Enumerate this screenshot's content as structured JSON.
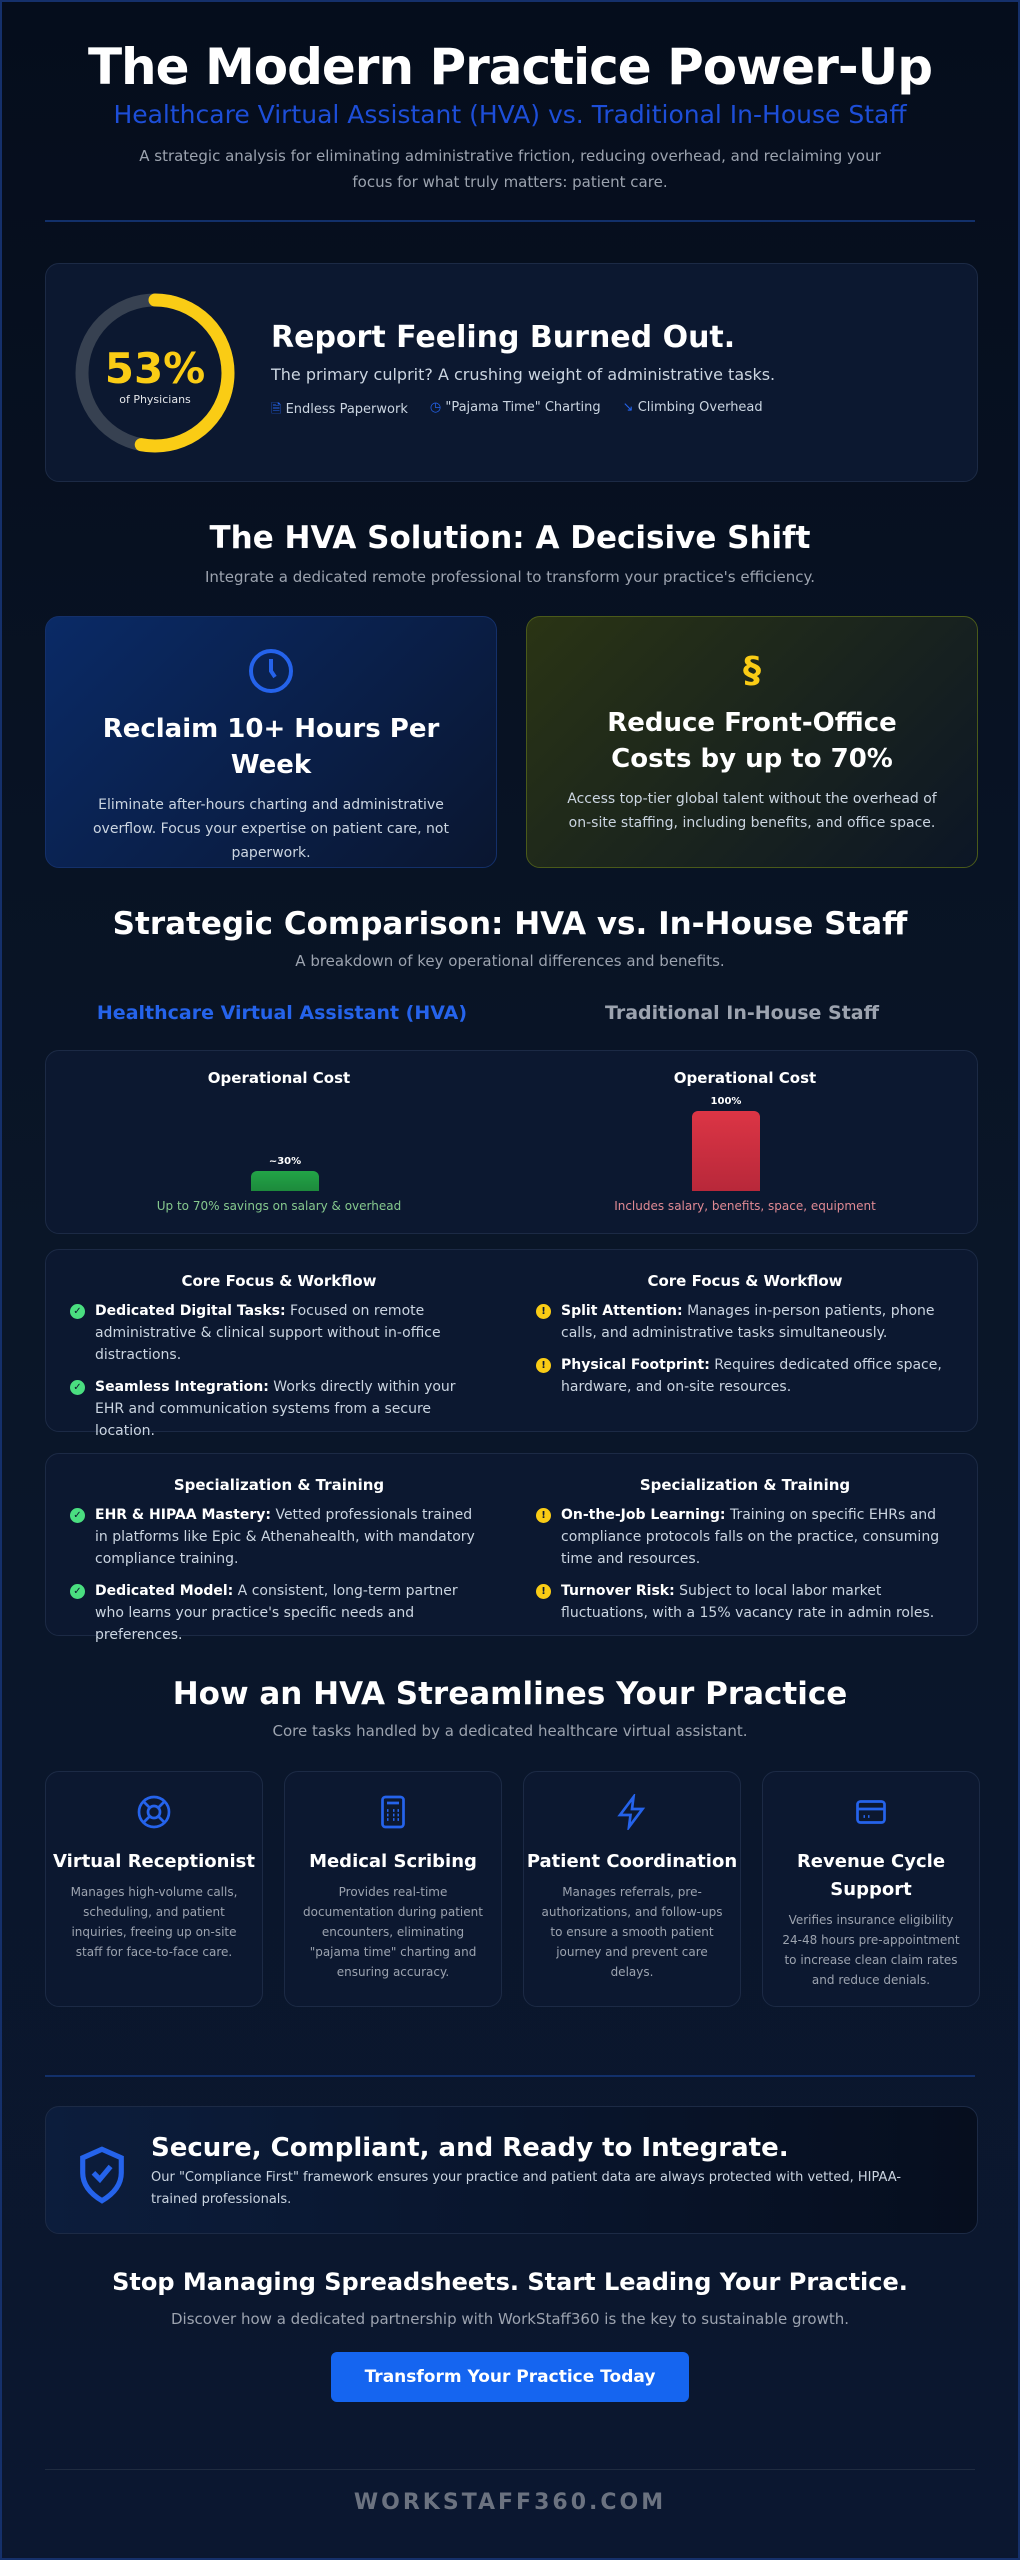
{
  "header": {
    "title": "The Modern Practice Power-Up",
    "subtitle": "Healthcare Virtual Assistant (HVA) vs. Traditional In-House Staff",
    "description": "A strategic analysis for eliminating administrative friction, reducing overhead, and reclaiming your focus for what truly matters: patient care."
  },
  "burnout": {
    "percent": "53%",
    "percent_value": 53,
    "percent_label": "of Physicians",
    "title": "Report Feeling Burned Out.",
    "text": "The primary culprit? A crushing weight of administrative tasks.",
    "tags": [
      {
        "icon": "document-icon",
        "label": "Endless Paperwork"
      },
      {
        "icon": "clock-icon",
        "label": "\"Pajama Time\" Charting"
      },
      {
        "icon": "trend-icon",
        "label": "Climbing Overhead"
      }
    ],
    "colors": {
      "ring": "#facc15",
      "track": "#374151"
    }
  },
  "solution": {
    "title": "The HVA Solution: A Decisive Shift",
    "subtitle": "Integrate a dedicated remote professional to transform your practice's efficiency.",
    "cards": [
      {
        "icon": "clock-icon",
        "title": "Reclaim 10+ Hours Per Week",
        "text": "Eliminate after-hours charting and administrative overflow. Focus your expertise on patient care, not paperwork."
      },
      {
        "icon": "dollar-icon",
        "title": "Reduce Front-Office Costs by up to 70%",
        "text": "Access top-tier global talent without the overhead of on-site staffing, including benefits, and office space."
      }
    ]
  },
  "comparison": {
    "title": "Strategic Comparison: HVA vs. In-House Staff",
    "subtitle": "A breakdown of key operational differences and benefits.",
    "hva_label": "Healthcare Virtual Assistant (HVA)",
    "staff_label": "Traditional In-House Staff",
    "cost": {
      "hva": {
        "title": "Operational Cost",
        "bar_label": "~30%",
        "value": 30,
        "note": "Up to 70% savings on salary & overhead"
      },
      "staff": {
        "title": "Operational Cost",
        "bar_label": "100%",
        "value": 100,
        "note": "Includes salary, benefits, space, equipment"
      }
    },
    "sections": [
      {
        "hva": {
          "title": "Core Focus & Workflow",
          "items": [
            {
              "bold": "Dedicated Digital Tasks:",
              "text": " Focused on remote administrative & clinical support without in-office distractions."
            },
            {
              "bold": "Seamless Integration:",
              "text": " Works directly within your EHR and communication systems from a secure location."
            }
          ]
        },
        "staff": {
          "title": "Core Focus & Workflow",
          "items": [
            {
              "bold": "Split Attention:",
              "text": " Manages in-person patients, phone calls, and administrative tasks simultaneously."
            },
            {
              "bold": "Physical Footprint:",
              "text": " Requires dedicated office space, hardware, and on-site resources."
            }
          ]
        }
      },
      {
        "hva": {
          "title": "Specialization & Training",
          "items": [
            {
              "bold": "EHR & HIPAA Mastery:",
              "text": " Vetted professionals trained in platforms like Epic & Athenahealth, with mandatory compliance training."
            },
            {
              "bold": "Dedicated Model:",
              "text": " A consistent, long-term partner who learns your practice's specific needs and preferences."
            }
          ]
        },
        "staff": {
          "title": "Specialization & Training",
          "items": [
            {
              "bold": "On-the-Job Learning:",
              "text": " Training on specific EHRs and compliance protocols falls on the practice, consuming time and resources."
            },
            {
              "bold": "Turnover Risk:",
              "text": " Subject to local labor market fluctuations, with a 15% vacancy rate in admin roles."
            }
          ]
        }
      }
    ]
  },
  "tasks": {
    "title": "How an HVA Streamlines Your Practice",
    "subtitle": "Core tasks handled by a dedicated healthcare virtual assistant.",
    "items": [
      {
        "icon": "lifebuoy-icon",
        "title": "Virtual Receptionist",
        "text": "Manages high-volume calls, scheduling, and patient inquiries, freeing up on-site staff for face-to-face care."
      },
      {
        "icon": "calculator-icon",
        "title": "Medical Scribing",
        "text": "Provides real-time documentation during patient encounters, eliminating \"pajama time\" charting and ensuring accuracy."
      },
      {
        "icon": "lightning-icon",
        "title": "Patient Coordination",
        "text": "Manages referrals, pre-authorizations, and follow-ups to ensure a smooth patient journey and prevent care delays."
      },
      {
        "icon": "credit-card-icon",
        "title": "Revenue Cycle Support",
        "text": "Verifies insurance eligibility 24-48 hours pre-appointment to increase clean claim rates and reduce denials."
      }
    ]
  },
  "secure": {
    "title": "Secure, Compliant, and Ready to Integrate.",
    "text": "Our \"Compliance First\" framework ensures your practice and patient data are always protected with vetted, HIPAA-trained professionals."
  },
  "cta": {
    "title": "Stop Managing Spreadsheets. Start Leading Your Practice.",
    "subtitle": "Discover how a dedicated partnership with WorkStaff360 is the key to sustainable growth.",
    "button": "Transform Your Practice Today"
  },
  "footer": {
    "brand": "WORKSTAFF360.COM"
  },
  "colors": {
    "accent": "#2563eb",
    "button": "#1565f0",
    "green": "#4ade80",
    "red": "#dc3545",
    "yellow": "#facc15"
  }
}
